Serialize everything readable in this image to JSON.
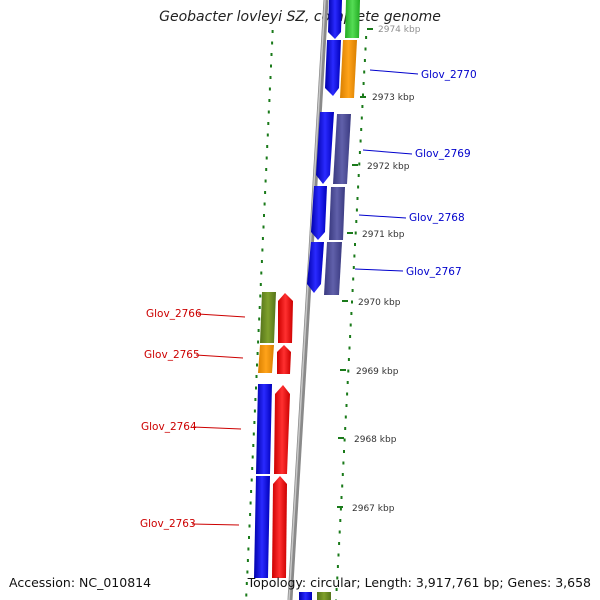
{
  "title": "Geobacter lovleyi SZ, complete genome",
  "footer": {
    "accession_label": "Accession: NC_010814",
    "summary": "Topology: circular; Length: 3,917,761 bp; Genes: 3,658"
  },
  "scale_labels": [
    {
      "id": "kbp-2974",
      "text": "2974 kbp"
    },
    {
      "id": "kbp-2973",
      "text": "2973 kbp"
    },
    {
      "id": "kbp-2972",
      "text": "2972 kbp"
    },
    {
      "id": "kbp-2971",
      "text": "2971 kbp"
    },
    {
      "id": "kbp-2970",
      "text": "2970 kbp"
    },
    {
      "id": "kbp-2969",
      "text": "2969 kbp"
    },
    {
      "id": "kbp-2968",
      "text": "2968 kbp"
    },
    {
      "id": "kbp-2967",
      "text": "2967 kbp"
    }
  ],
  "genes_right": [
    {
      "id": "glov-2770",
      "label": "Glov_2770"
    },
    {
      "id": "glov-2769",
      "label": "Glov_2769"
    },
    {
      "id": "glov-2768",
      "label": "Glov_2768"
    },
    {
      "id": "glov-2767",
      "label": "Glov_2767"
    }
  ],
  "genes_left": [
    {
      "id": "glov-2766",
      "label": "Glov_2766"
    },
    {
      "id": "glov-2765",
      "label": "Glov_2765"
    },
    {
      "id": "glov-2764",
      "label": "Glov_2764"
    },
    {
      "id": "glov-2763",
      "label": "Glov_2763"
    }
  ],
  "colors": {
    "forward_label": "#0000cc",
    "reverse_label": "#cc0000",
    "cds_blue": "#0000ff",
    "cds_red": "#ff0000",
    "cog_orange": "#ff9900",
    "cog_purple": "#4d4d99",
    "cog_olive": "#6b8e23",
    "cog_green": "#33cc33",
    "backbone": "#888888",
    "tick_green": "#1a7a1a"
  }
}
